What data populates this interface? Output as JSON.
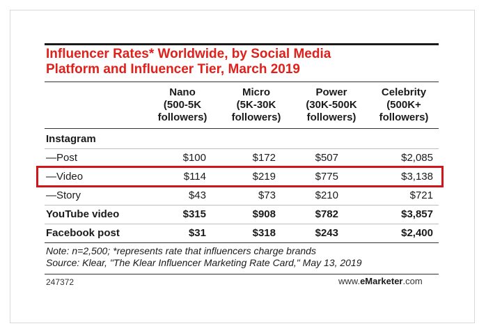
{
  "title_line1": "Influencer Rates* Worldwide, by Social Media",
  "title_line2": "Platform and Influencer Tier, March 2019",
  "columns": [
    {
      "l1": "Nano",
      "l2": "(500-5K",
      "l3": "followers)"
    },
    {
      "l1": "Micro",
      "l2": "(5K-30K",
      "l3": "followers)"
    },
    {
      "l1": "Power",
      "l2": "(30K-500K",
      "l3": "followers)"
    },
    {
      "l1": "Celebrity",
      "l2": "(500K+",
      "l3": "followers)"
    }
  ],
  "rows": [
    {
      "label": "Instagram",
      "values": [
        "",
        "",
        "",
        ""
      ]
    },
    {
      "label": "—Post",
      "values": [
        "$100",
        "$172",
        "$507",
        "$2,085"
      ]
    },
    {
      "label": "—Video",
      "values": [
        "$114",
        "$219",
        "$775",
        "$3,138"
      ]
    },
    {
      "label": "—Story",
      "values": [
        "$43",
        "$73",
        "$210",
        "$721"
      ]
    },
    {
      "label": "YouTube video",
      "values": [
        "$315",
        "$908",
        "$782",
        "$3,857"
      ]
    },
    {
      "label": "Facebook post",
      "values": [
        "$31",
        "$318",
        "$243",
        "$2,400"
      ]
    }
  ],
  "note_line1": "Note: n=2,500; *represents rate that influencers charge brands",
  "note_line2": "Source: Klear, \"The Klear Influencer Marketing Rate Card,\" May 13, 2019",
  "chart_id": "247372",
  "brand_prefix": "www.",
  "brand_bold": "eMarketer",
  "brand_suffix": ".com",
  "highlight_color": "#d0151b",
  "title_color": "#e0201b"
}
